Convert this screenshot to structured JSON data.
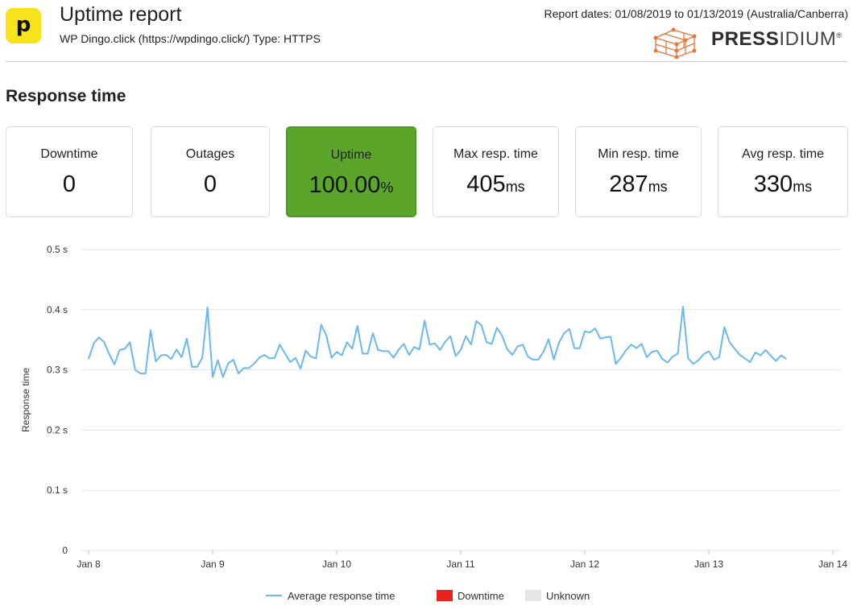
{
  "header": {
    "logo_letter": "p",
    "title": "Uptime report",
    "subtitle": "WP Dingo.click (https://wpdingo.click/) Type: HTTPS",
    "report_dates": "Report dates: 01/08/2019 to 01/13/2019 (Australia/Canberra)",
    "brand_bold": "PRESS",
    "brand_light": "IDIUM",
    "brand_registered": "®"
  },
  "section": {
    "heading": "Response time"
  },
  "stats": [
    {
      "label": "Downtime",
      "value": "0",
      "unit": ""
    },
    {
      "label": "Outages",
      "value": "0",
      "unit": ""
    },
    {
      "label": "Uptime",
      "value": "100.00",
      "unit": "%"
    },
    {
      "label": "Max resp. time",
      "value": "405",
      "unit": "ms"
    },
    {
      "label": "Min resp. time",
      "value": "287",
      "unit": "ms"
    },
    {
      "label": "Avg resp. time",
      "value": "330",
      "unit": "ms"
    }
  ],
  "colors": {
    "line": "#6bb8f0",
    "uptime_card": "#5ba52a",
    "downtime": "#e8221f",
    "unknown": "#e6e6e6",
    "brand_icon": "#e8763a",
    "grid": "#e3e3e3"
  },
  "chart_data": {
    "type": "line",
    "ylabel": "Response time",
    "ylim": [
      0,
      0.5
    ],
    "y_ticks": [
      {
        "value": 0,
        "label": "0"
      },
      {
        "value": 0.1,
        "label": "0.1 s"
      },
      {
        "value": 0.2,
        "label": "0.2 s"
      },
      {
        "value": 0.3,
        "label": "0.3 s"
      },
      {
        "value": 0.4,
        "label": "0.4 s"
      },
      {
        "value": 0.5,
        "label": "0.5 s"
      }
    ],
    "xlim": [
      "2019-01-08",
      "2019-01-14"
    ],
    "x_ticks": [
      {
        "value": "2019-01-08",
        "label": "Jan 8"
      },
      {
        "value": "2019-01-09",
        "label": "Jan 9"
      },
      {
        "value": "2019-01-10",
        "label": "Jan 10"
      },
      {
        "value": "2019-01-11",
        "label": "Jan 11"
      },
      {
        "value": "2019-01-12",
        "label": "Jan 12"
      },
      {
        "value": "2019-01-13",
        "label": "Jan 13"
      },
      {
        "value": "2019-01-14",
        "label": "Jan 14"
      }
    ],
    "grid": true,
    "legend": [
      {
        "name": "Average response time",
        "kind": "line"
      },
      {
        "name": "Downtime",
        "kind": "box"
      },
      {
        "name": "Unknown",
        "kind": "box"
      }
    ],
    "series": [
      {
        "name": "Average response time",
        "x": [
          "2019-01-08 00:00",
          "2019-01-08 01:00",
          "2019-01-08 02:00",
          "2019-01-08 03:00",
          "2019-01-08 04:00",
          "2019-01-08 05:00",
          "2019-01-08 06:00",
          "2019-01-08 07:00",
          "2019-01-08 08:00",
          "2019-01-08 09:00",
          "2019-01-08 10:00",
          "2019-01-08 11:00",
          "2019-01-08 12:00",
          "2019-01-08 13:00",
          "2019-01-08 14:00",
          "2019-01-08 15:00",
          "2019-01-08 16:00",
          "2019-01-08 17:00",
          "2019-01-08 18:00",
          "2019-01-08 19:00",
          "2019-01-08 20:00",
          "2019-01-08 21:00",
          "2019-01-08 22:00",
          "2019-01-08 23:00",
          "2019-01-09 00:00",
          "2019-01-09 01:00",
          "2019-01-09 02:00",
          "2019-01-09 03:00",
          "2019-01-09 04:00",
          "2019-01-09 05:00",
          "2019-01-09 06:00",
          "2019-01-09 07:00",
          "2019-01-09 08:00",
          "2019-01-09 09:00",
          "2019-01-09 10:00",
          "2019-01-09 11:00",
          "2019-01-09 12:00",
          "2019-01-09 13:00",
          "2019-01-09 14:00",
          "2019-01-09 15:00",
          "2019-01-09 16:00",
          "2019-01-09 17:00",
          "2019-01-09 18:00",
          "2019-01-09 19:00",
          "2019-01-09 20:00",
          "2019-01-09 21:00",
          "2019-01-09 22:00",
          "2019-01-09 23:00",
          "2019-01-10 00:00",
          "2019-01-10 01:00",
          "2019-01-10 02:00",
          "2019-01-10 03:00",
          "2019-01-10 04:00",
          "2019-01-10 05:00",
          "2019-01-10 06:00",
          "2019-01-10 07:00",
          "2019-01-10 08:00",
          "2019-01-10 09:00",
          "2019-01-10 10:00",
          "2019-01-10 11:00",
          "2019-01-10 12:00",
          "2019-01-10 13:00",
          "2019-01-10 14:00",
          "2019-01-10 15:00",
          "2019-01-10 16:00",
          "2019-01-10 17:00",
          "2019-01-10 18:00",
          "2019-01-10 19:00",
          "2019-01-10 20:00",
          "2019-01-10 21:00",
          "2019-01-10 22:00",
          "2019-01-10 23:00",
          "2019-01-11 00:00",
          "2019-01-11 01:00",
          "2019-01-11 02:00",
          "2019-01-11 03:00",
          "2019-01-11 04:00",
          "2019-01-11 05:00",
          "2019-01-11 06:00",
          "2019-01-11 07:00",
          "2019-01-11 08:00",
          "2019-01-11 09:00",
          "2019-01-11 10:00",
          "2019-01-11 11:00",
          "2019-01-11 12:00",
          "2019-01-11 13:00",
          "2019-01-11 14:00",
          "2019-01-11 15:00",
          "2019-01-11 16:00",
          "2019-01-11 17:00",
          "2019-01-11 18:00",
          "2019-01-11 19:00",
          "2019-01-11 20:00",
          "2019-01-11 21:00",
          "2019-01-11 22:00",
          "2019-01-11 23:00",
          "2019-01-12 00:00",
          "2019-01-12 01:00",
          "2019-01-12 02:00",
          "2019-01-12 03:00",
          "2019-01-12 04:00",
          "2019-01-12 05:00",
          "2019-01-12 06:00",
          "2019-01-12 07:00",
          "2019-01-12 08:00",
          "2019-01-12 09:00",
          "2019-01-12 10:00",
          "2019-01-12 11:00",
          "2019-01-12 12:00",
          "2019-01-12 13:00",
          "2019-01-12 14:00",
          "2019-01-12 15:00",
          "2019-01-12 16:00",
          "2019-01-12 17:00",
          "2019-01-12 18:00",
          "2019-01-12 19:00",
          "2019-01-12 20:00",
          "2019-01-12 21:00",
          "2019-01-12 22:00",
          "2019-01-12 23:00",
          "2019-01-13 00:00",
          "2019-01-13 01:00",
          "2019-01-13 02:00",
          "2019-01-13 03:00",
          "2019-01-13 04:00",
          "2019-01-13 05:00",
          "2019-01-13 06:00",
          "2019-01-13 07:00",
          "2019-01-13 08:00",
          "2019-01-13 09:00",
          "2019-01-13 10:00",
          "2019-01-13 11:00",
          "2019-01-13 12:00",
          "2019-01-13 13:00",
          "2019-01-13 14:00",
          "2019-01-13 15:00"
        ],
        "y": [
          0.318,
          0.344,
          0.354,
          0.346,
          0.326,
          0.309,
          0.333,
          0.335,
          0.346,
          0.3,
          0.294,
          0.294,
          0.366,
          0.314,
          0.324,
          0.325,
          0.318,
          0.334,
          0.321,
          0.352,
          0.305,
          0.305,
          0.32,
          0.404,
          0.288,
          0.316,
          0.288,
          0.311,
          0.317,
          0.294,
          0.303,
          0.303,
          0.31,
          0.32,
          0.325,
          0.319,
          0.32,
          0.342,
          0.327,
          0.313,
          0.32,
          0.302,
          0.332,
          0.322,
          0.319,
          0.375,
          0.357,
          0.32,
          0.33,
          0.324,
          0.346,
          0.335,
          0.373,
          0.327,
          0.327,
          0.361,
          0.333,
          0.331,
          0.331,
          0.32,
          0.334,
          0.343,
          0.325,
          0.338,
          0.334,
          0.382,
          0.342,
          0.344,
          0.333,
          0.347,
          0.356,
          0.323,
          0.333,
          0.356,
          0.342,
          0.381,
          0.374,
          0.346,
          0.343,
          0.37,
          0.357,
          0.334,
          0.325,
          0.339,
          0.342,
          0.322,
          0.317,
          0.317,
          0.33,
          0.351,
          0.317,
          0.345,
          0.361,
          0.368,
          0.336,
          0.336,
          0.364,
          0.362,
          0.369,
          0.352,
          0.354,
          0.355,
          0.31,
          0.32,
          0.333,
          0.342,
          0.336,
          0.343,
          0.321,
          0.33,
          0.332,
          0.318,
          0.312,
          0.322,
          0.327,
          0.405,
          0.319,
          0.31,
          0.316,
          0.326,
          0.331,
          0.317,
          0.321,
          0.371,
          0.346,
          0.335,
          0.325,
          0.319,
          0.313,
          0.329,
          0.324,
          0.333,
          0.323,
          0.315,
          0.324,
          0.318
        ]
      }
    ]
  }
}
